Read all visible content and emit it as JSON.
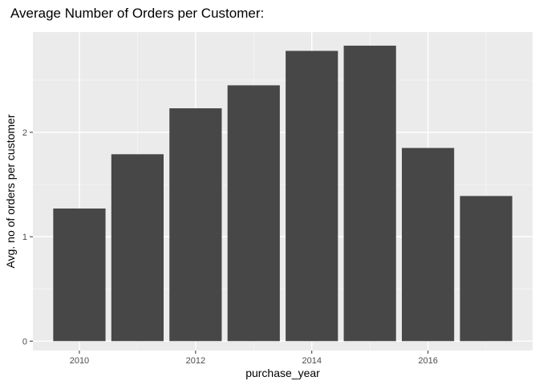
{
  "chart_data": {
    "type": "bar",
    "title": "Average Number of Orders per Customer:",
    "xlabel": "purchase_year",
    "ylabel": "Avg. no of orders per customer",
    "x": [
      2010,
      2011,
      2012,
      2013,
      2014,
      2015,
      2016,
      2017
    ],
    "values": [
      1.27,
      1.79,
      2.23,
      2.45,
      2.78,
      2.83,
      1.85,
      1.39
    ],
    "xlim": [
      2009.2,
      2017.8
    ],
    "ylim": [
      -0.09,
      2.96
    ],
    "xticks": [
      2010,
      2012,
      2014,
      2016
    ],
    "yticks": [
      0,
      1,
      2
    ],
    "bar_color": "#474747",
    "panel_color": "#ebebeb",
    "grid": true,
    "legend": "none"
  }
}
